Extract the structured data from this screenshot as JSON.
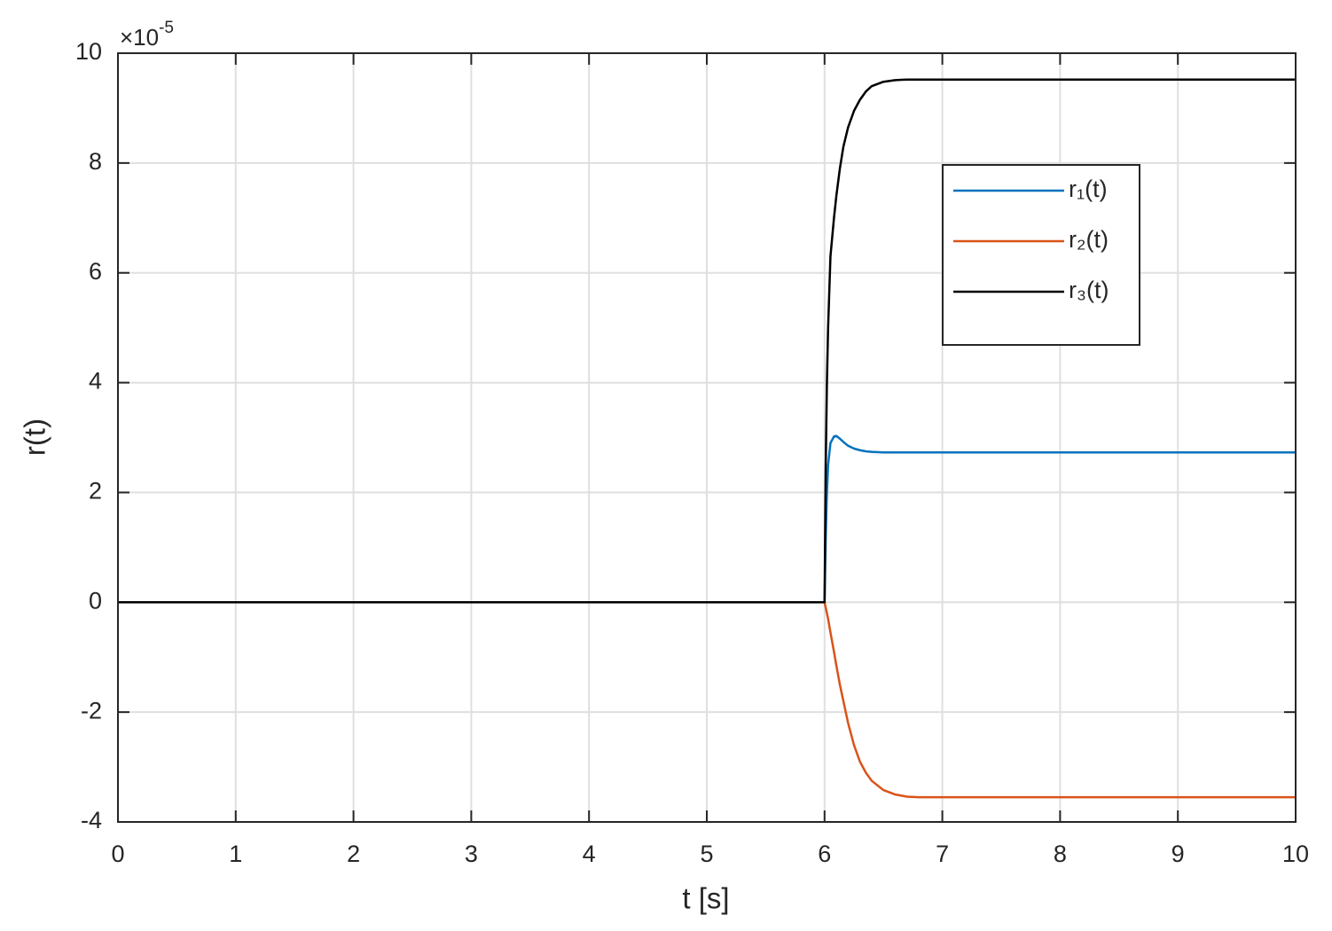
{
  "chart_data": {
    "type": "line",
    "xlabel": "t [s]",
    "ylabel": "r(t)",
    "y_scale_base": "×10",
    "y_scale_exponent": "-5",
    "x": [
      0,
      6,
      6.01,
      6.02,
      6.03,
      6.05,
      6.08,
      6.1,
      6.13,
      6.16,
      6.2,
      6.25,
      6.3,
      6.35,
      6.4,
      6.5,
      6.6,
      6.7,
      6.8,
      7,
      8,
      9,
      10
    ],
    "series": [
      {
        "name": "r₁(t)",
        "color": "#0072bd",
        "values": [
          0,
          0,
          1.2,
          2.0,
          2.5,
          2.9,
          3.02,
          3.03,
          2.98,
          2.92,
          2.85,
          2.8,
          2.77,
          2.75,
          2.74,
          2.73,
          2.73,
          2.73,
          2.73,
          2.73,
          2.73,
          2.73,
          2.73
        ]
      },
      {
        "name": "r₂(t)",
        "color": "#d95319",
        "values": [
          0,
          0,
          -0.1,
          -0.2,
          -0.3,
          -0.55,
          -0.9,
          -1.15,
          -1.5,
          -1.8,
          -2.2,
          -2.6,
          -2.9,
          -3.1,
          -3.25,
          -3.42,
          -3.5,
          -3.54,
          -3.55,
          -3.55,
          -3.55,
          -3.55,
          -3.55
        ]
      },
      {
        "name": "r₃(t)",
        "color": "#000000",
        "values": [
          0,
          0,
          2.5,
          4.0,
          5.0,
          6.3,
          7.0,
          7.4,
          7.9,
          8.3,
          8.65,
          8.95,
          9.15,
          9.3,
          9.4,
          9.48,
          9.51,
          9.52,
          9.52,
          9.52,
          9.52,
          9.52,
          9.52
        ]
      }
    ],
    "xlim": [
      0,
      10
    ],
    "xticks": [
      0,
      1,
      2,
      3,
      4,
      5,
      6,
      7,
      8,
      9,
      10
    ],
    "ylim": [
      -4,
      10
    ],
    "yticks": [
      -4,
      -2,
      0,
      2,
      4,
      6,
      8,
      10
    ],
    "grid": true,
    "legend": "upper-right"
  }
}
